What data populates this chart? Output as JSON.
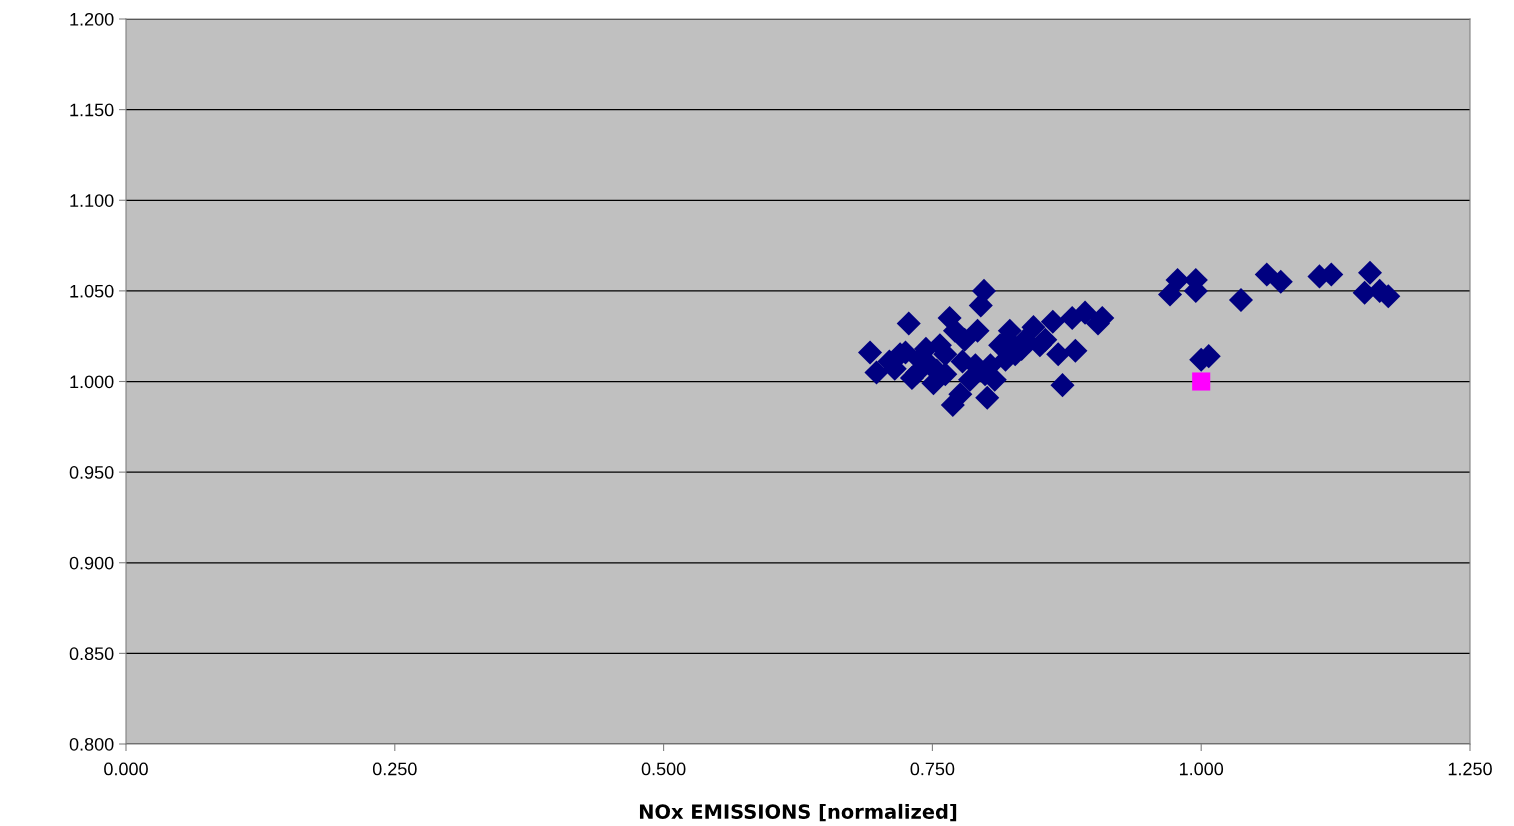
{
  "chart_data": {
    "type": "scatter",
    "xlabel": "NOx EMISSIONS [normalized]",
    "xlim": [
      0,
      1.25
    ],
    "ylim": [
      0.8,
      1.2
    ],
    "xticks": [
      {
        "value": 0,
        "label": "0.000"
      },
      {
        "value": 0.25,
        "label": "0.250"
      },
      {
        "value": 0.5,
        "label": "0.500"
      },
      {
        "value": 0.75,
        "label": "0.750"
      },
      {
        "value": 1,
        "label": "1.000"
      },
      {
        "value": 1.25,
        "label": "1.250"
      }
    ],
    "yticks": [
      {
        "value": 0.8,
        "label": "0.800"
      },
      {
        "value": 0.85,
        "label": "0.850"
      },
      {
        "value": 0.9,
        "label": "0.900"
      },
      {
        "value": 0.95,
        "label": "0.950"
      },
      {
        "value": 1,
        "label": "1.000"
      },
      {
        "value": 1.05,
        "label": "1.050"
      },
      {
        "value": 1.1,
        "label": "1.100"
      },
      {
        "value": 1.15,
        "label": "1.150"
      },
      {
        "value": 1.2,
        "label": "1.200"
      }
    ],
    "grid": "y",
    "legend": false,
    "series": [
      {
        "color": "#000080",
        "marker": "diamond",
        "x": [
          0.692,
          0.698,
          0.71,
          0.715,
          0.728,
          0.725,
          0.731,
          0.738,
          0.744,
          0.751,
          0.754,
          0.762,
          0.766,
          0.771,
          0.769,
          0.778,
          0.785,
          0.792,
          0.795,
          0.798,
          0.801,
          0.804,
          0.808,
          0.813,
          0.82,
          0.827,
          0.822,
          0.833,
          0.844,
          0.85,
          0.862,
          0.867,
          0.871,
          0.88,
          0.883,
          0.892,
          0.904,
          0.908,
          0.78,
          0.762,
          0.72,
          0.736,
          0.748,
          0.776,
          0.79,
          0.818,
          0.836,
          0.855,
          0.757,
          0.799,
          0.971,
          0.978,
          0.995,
          0.995,
          1.037,
          1.061,
          1.074,
          1.11,
          1.121,
          1.157,
          1.152,
          1.174,
          1.166,
          1.007,
          1.0
        ],
        "values": [
          1.016,
          1.005,
          1.011,
          1.007,
          1.032,
          1.016,
          1.002,
          1.012,
          1.018,
          0.999,
          1.006,
          1.015,
          1.035,
          1.028,
          0.987,
          1.011,
          1.001,
          1.028,
          1.042,
          1.05,
          0.991,
          1.009,
          1.001,
          1.02,
          1.023,
          1.015,
          1.028,
          1.018,
          1.03,
          1.02,
          1.033,
          1.015,
          0.998,
          1.035,
          1.017,
          1.038,
          1.032,
          1.035,
          1.023,
          1.004,
          1.015,
          1.005,
          1.009,
          0.993,
          1.009,
          1.012,
          1.023,
          1.023,
          1.02,
          1.004,
          1.048,
          1.056,
          1.056,
          1.05,
          1.045,
          1.059,
          1.055,
          1.058,
          1.059,
          1.06,
          1.049,
          1.047,
          1.05,
          1.014,
          1.012
        ]
      },
      {
        "color": "#ff00ff",
        "marker": "square",
        "x": [
          1.0
        ],
        "values": [
          1.0
        ]
      }
    ]
  }
}
